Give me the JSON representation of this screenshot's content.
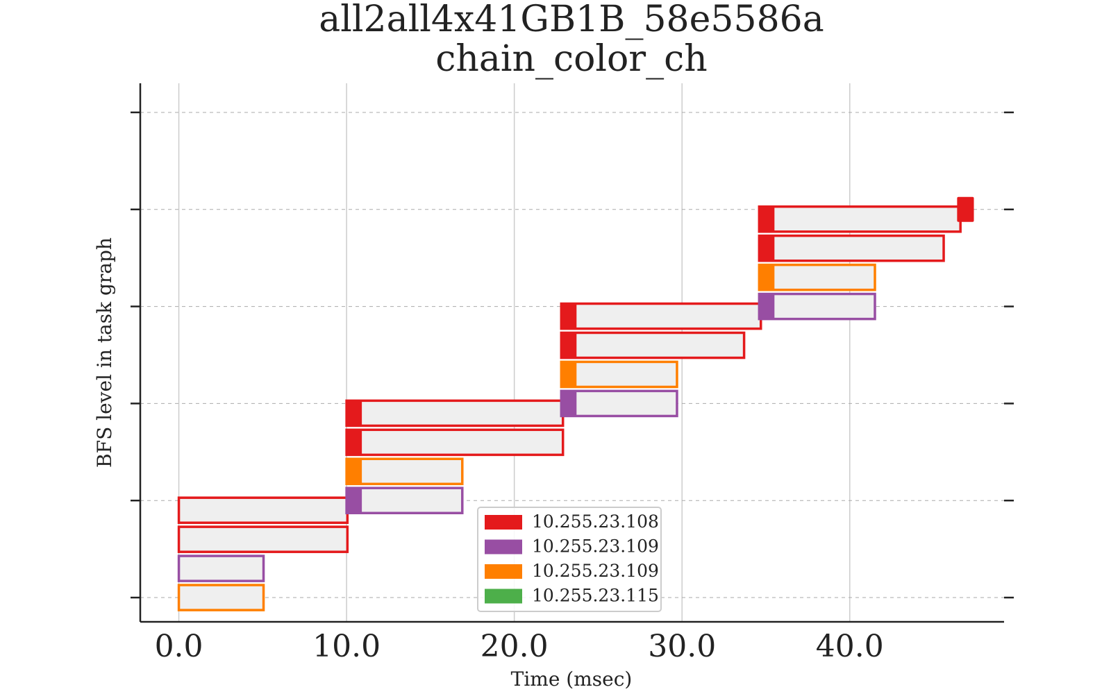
{
  "chart_data": {
    "type": "gantt",
    "title": "all2all4x41GB1B_58e5586a",
    "subtitle": "chain_color_ch",
    "xlabel": "Time (msec)",
    "ylabel": "BFS level in task graph",
    "xlim": [
      -2.3,
      49.2
    ],
    "ylim": [
      -0.25,
      5.3
    ],
    "x_ticks": [
      "0.0",
      "10.0",
      "20.0",
      "30.0",
      "40.0"
    ],
    "x_tick_values": [
      0,
      10,
      20,
      30,
      40
    ],
    "y_tick_values": [
      0,
      1,
      2,
      3,
      4,
      5
    ],
    "grid": {
      "x": true,
      "y": "dashed"
    },
    "legend": {
      "placement": "lower-center",
      "entries": [
        {
          "label": "10.255.23.108",
          "color": "#e41a1c"
        },
        {
          "label": "10.255.23.109",
          "color": "#984ea3"
        },
        {
          "label": "10.255.23.109",
          "color": "#ff7f00"
        },
        {
          "label": "10.255.23.115",
          "color": "#4daf4a"
        }
      ]
    },
    "tasks": [
      {
        "level": 0,
        "slot": 0,
        "start": 0.0,
        "end": 5.05,
        "color": "#ff7f00",
        "head": false
      },
      {
        "level": 0,
        "slot": 1,
        "start": 0.0,
        "end": 5.05,
        "color": "#984ea3",
        "head": false
      },
      {
        "level": 0,
        "slot": 2,
        "start": 0.0,
        "end": 10.05,
        "color": "#e41a1c",
        "head": false
      },
      {
        "level": 0,
        "slot": 3,
        "start": 0.0,
        "end": 10.05,
        "color": "#e41a1c",
        "head": false
      },
      {
        "level": 1,
        "slot": 0,
        "start": 10.0,
        "end": 16.9,
        "color": "#984ea3",
        "head": true
      },
      {
        "level": 1,
        "slot": 1,
        "start": 10.0,
        "end": 16.9,
        "color": "#ff7f00",
        "head": true
      },
      {
        "level": 1,
        "slot": 2,
        "start": 10.0,
        "end": 22.9,
        "color": "#e41a1c",
        "head": true
      },
      {
        "level": 1,
        "slot": 3,
        "start": 10.0,
        "end": 22.9,
        "color": "#e41a1c",
        "head": true
      },
      {
        "level": 2,
        "slot": 0,
        "start": 22.8,
        "end": 29.7,
        "color": "#984ea3",
        "head": true
      },
      {
        "level": 2,
        "slot": 1,
        "start": 22.8,
        "end": 29.7,
        "color": "#ff7f00",
        "head": true
      },
      {
        "level": 2,
        "slot": 2,
        "start": 22.8,
        "end": 33.7,
        "color": "#e41a1c",
        "head": true
      },
      {
        "level": 2,
        "slot": 3,
        "start": 22.8,
        "end": 34.7,
        "color": "#e41a1c",
        "head": true
      },
      {
        "level": 3,
        "slot": 0,
        "start": 34.6,
        "end": 41.5,
        "color": "#984ea3",
        "head": true
      },
      {
        "level": 3,
        "slot": 1,
        "start": 34.6,
        "end": 41.5,
        "color": "#ff7f00",
        "head": true
      },
      {
        "level": 3,
        "slot": 2,
        "start": 34.6,
        "end": 45.6,
        "color": "#e41a1c",
        "head": true
      },
      {
        "level": 3,
        "slot": 3,
        "start": 34.6,
        "end": 46.6,
        "color": "#e41a1c",
        "head": true
      },
      {
        "level": 4,
        "slot": 0,
        "start": 46.4,
        "end": 47.4,
        "color": "#e41a1c",
        "head": "solid"
      }
    ],
    "colors": {
      "bar_fill": "#efefef",
      "grid": "#cccccc",
      "axis": "#222222"
    }
  }
}
